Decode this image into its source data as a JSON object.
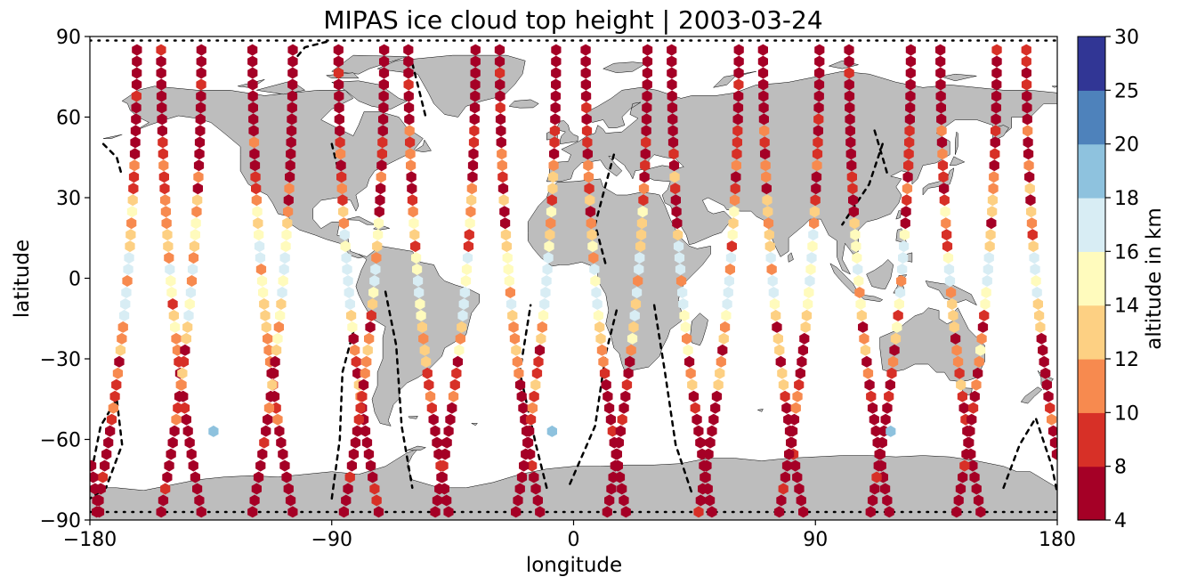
{
  "chart_data": {
    "type": "scatter",
    "title": "MIPAS ice cloud top height | 2003-03-24",
    "xlabel": "longitude",
    "ylabel": "latitude",
    "xlim": [
      -180,
      180
    ],
    "ylim": [
      -90,
      90
    ],
    "xticks": [
      "−180",
      "−90",
      "0",
      "90",
      "180"
    ],
    "yticks": [
      "−90",
      "−60",
      "−30",
      "0",
      "30",
      "60",
      "90"
    ],
    "grid": false,
    "background_map": "world coastlines, land shaded grey",
    "land_color": "#bdbdbd",
    "colorbar": {
      "label": "altitude in km",
      "boundaries": [
        4,
        8,
        10,
        12,
        14,
        16,
        18,
        20,
        25,
        30
      ],
      "tick_labels": [
        "4",
        "8",
        "10",
        "12",
        "14",
        "16",
        "18",
        "20",
        "25",
        "30"
      ],
      "colors": [
        "#a50026",
        "#d73027",
        "#f46d43",
        "#fdae61",
        "#fee090",
        "#ffffbf",
        "#e0f3f8",
        "#abd9e9",
        "#74add1",
        "#4575b4",
        "#313695"
      ],
      "bin_colors": [
        "#a50026",
        "#d73027",
        "#f78a4f",
        "#fdd083",
        "#fffbbd",
        "#d8edf4",
        "#8ec2de",
        "#4e82bb",
        "#313695"
      ]
    },
    "tracks": [
      {
        "lon0": -166,
        "dir": 1
      },
      {
        "lon0": -150,
        "dir": -1
      },
      {
        "lon0": -142,
        "dir": 1
      },
      {
        "lon0": -116,
        "dir": -1
      },
      {
        "lon0": -108,
        "dir": 1
      },
      {
        "lon0": -84,
        "dir": -1
      },
      {
        "lon0": -74,
        "dir": 1
      },
      {
        "lon0": -58,
        "dir": -1
      },
      {
        "lon0": -40,
        "dir": 1
      },
      {
        "lon0": -24,
        "dir": -1
      },
      {
        "lon0": -10,
        "dir": 1
      },
      {
        "lon0": 8,
        "dir": -1
      },
      {
        "lon0": 24,
        "dir": 1
      },
      {
        "lon0": 40,
        "dir": -1
      },
      {
        "lon0": 58,
        "dir": 1
      },
      {
        "lon0": 74,
        "dir": -1
      },
      {
        "lon0": 88,
        "dir": 1
      },
      {
        "lon0": 106,
        "dir": -1
      },
      {
        "lon0": 122,
        "dir": 1
      },
      {
        "lon0": 140,
        "dir": -1
      },
      {
        "lon0": 154,
        "dir": 1
      },
      {
        "lon0": 172,
        "dir": -1
      }
    ],
    "track_note": "~850 hexagon markers along 22 orbit tracks; values estimated by latitude band: polar 4-8 km, mid-latitude 8-14 km, tropics 14-18 km",
    "isolated_points": [
      {
        "lon": -134,
        "lat": -57,
        "value": 19
      },
      {
        "lon": -8,
        "lat": -57,
        "value": 19
      },
      {
        "lon": 118,
        "lat": -57,
        "value": 19
      }
    ]
  }
}
